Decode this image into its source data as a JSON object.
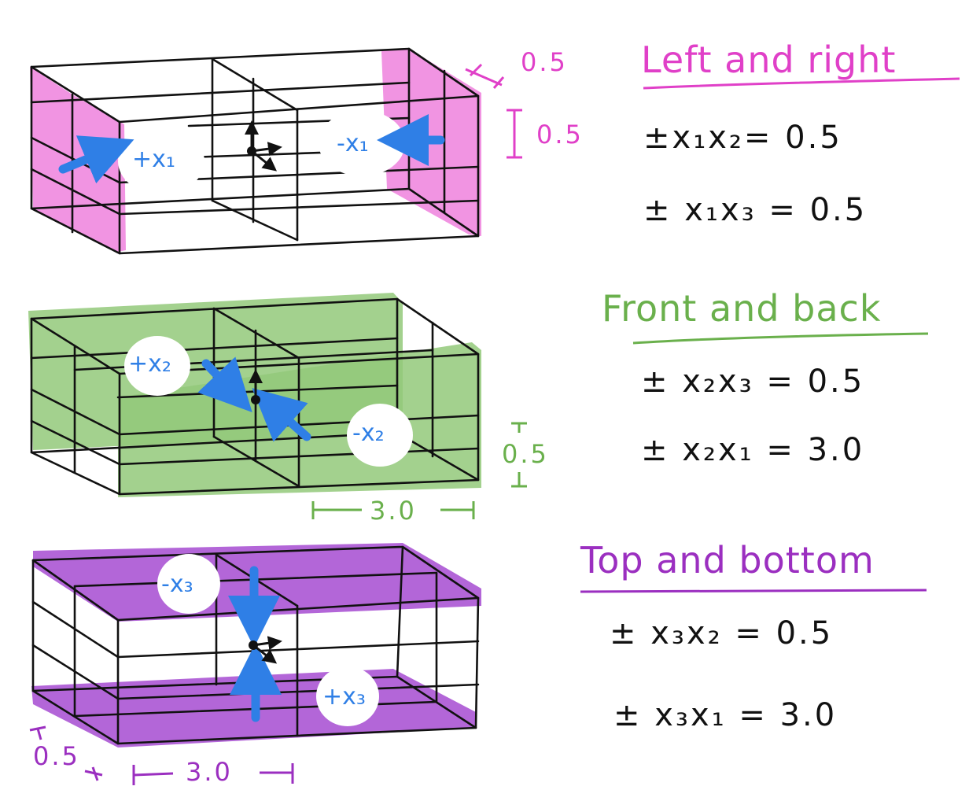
{
  "colors": {
    "pink": "#e040c8",
    "pink_fill": "#ec70d8",
    "green": "#6ab04c",
    "green_fill": "#93c97a",
    "purple": "#9b2fc0",
    "purple_fill": "#a64bd1",
    "blue": "#2f7fe6",
    "ink": "#111111"
  },
  "panels": {
    "left_right": {
      "title": "Left and right",
      "eq1": "±x₁x₂= 0.5",
      "eq2": "± x₁x₃ = 0.5",
      "label_pos": "+x₁",
      "label_neg": "-x₁",
      "dim_depth": "0.5",
      "dim_height": "0.5"
    },
    "front_back": {
      "title": "Front and back",
      "eq1": "± x₂x₃ = 0.5",
      "eq2": "± x₂x₁ = 3.0",
      "label_pos": "+x₂",
      "label_neg": "-x₂",
      "dim_height": "0.5",
      "dim_width": "3.0"
    },
    "top_bottom": {
      "title": "Top and bottom",
      "eq1": "± x₃x₂ = 0.5",
      "eq2": "± x₃x₁ = 3.0",
      "label_pos": "+x₃",
      "label_neg": "-x₃",
      "dim_depth": "0.5",
      "dim_width": "3.0"
    }
  }
}
